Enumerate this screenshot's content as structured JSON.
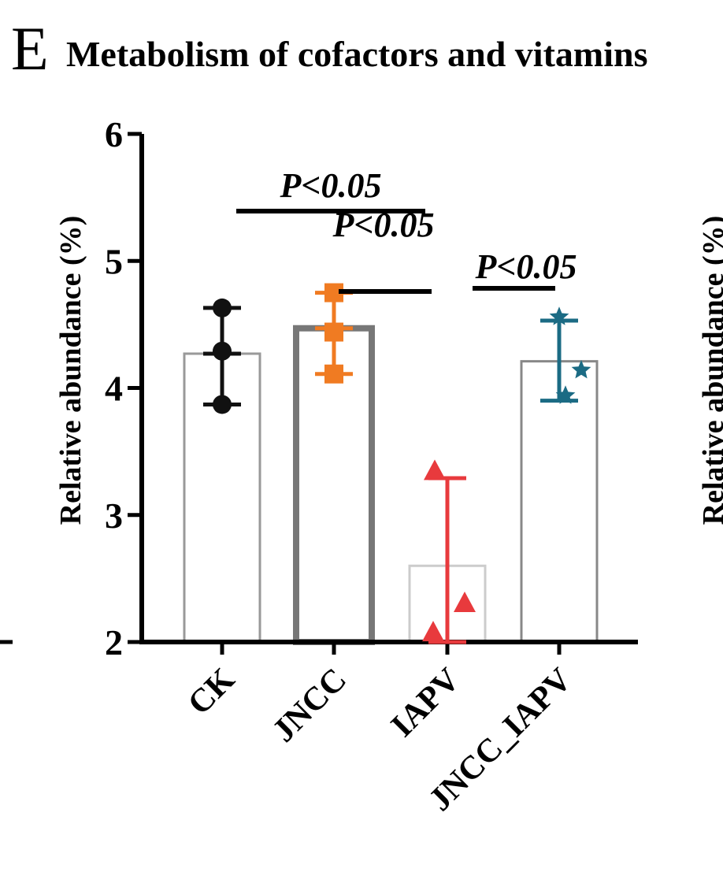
{
  "panel_letter": "E",
  "chart_data": {
    "type": "bar",
    "title": "Metabolism of cofactors and vitamins",
    "ylabel": "Relative abundance (%)",
    "xlabel": "",
    "ylim": [
      2,
      6
    ],
    "yticks": [
      "2",
      "3",
      "4",
      "5",
      "6"
    ],
    "categories": [
      "CK",
      "JNCC",
      "IAPV",
      "JNCC_IAPV"
    ],
    "means": [
      4.27,
      4.47,
      2.6,
      4.21
    ],
    "error_bars": [
      {
        "low": 3.87,
        "high": 4.63
      },
      {
        "low": 4.11,
        "high": 4.75
      },
      {
        "low": 2.0,
        "high": 3.29
      },
      {
        "low": 3.9,
        "high": 4.53
      }
    ],
    "points": [
      [
        4.63,
        4.29,
        3.87
      ],
      [
        4.75,
        4.44,
        4.11
      ],
      [
        3.35,
        2.31,
        2.08
      ],
      [
        4.56,
        4.14,
        3.94
      ]
    ],
    "colors": [
      "#111111",
      "#f07b22",
      "#e83a3d",
      "#1b6b84"
    ],
    "bar_edge_colors": [
      "#999999",
      "#777777",
      "#cccccc",
      "#888888"
    ],
    "markers": [
      "circle",
      "square",
      "triangle",
      "star"
    ],
    "significance": [
      {
        "label": "P<0.05",
        "from": "CK",
        "to": "IAPV"
      },
      {
        "label": "P<0.05",
        "from": "JNCC",
        "to": "IAPV"
      },
      {
        "label": "P<0.05",
        "from": "IAPV",
        "to": "JNCC_IAPV"
      }
    ],
    "grid": false,
    "legend": "none"
  },
  "neighbor_panel": {
    "ylabel": "Relative abundance (%)"
  }
}
